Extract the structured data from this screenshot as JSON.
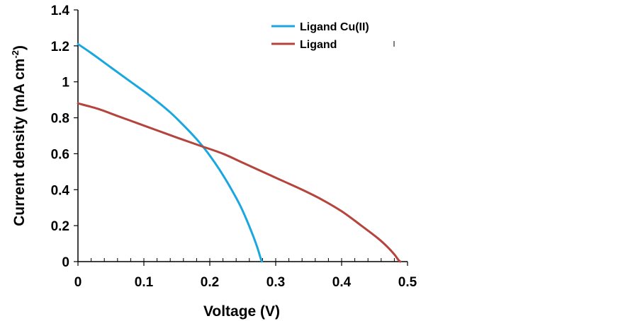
{
  "chart_data": {
    "type": "line",
    "title": "",
    "xlabel": "Voltage (V)",
    "ylabel": {
      "main": "Current density (mA cm",
      "sup": "-2",
      "close": ")"
    },
    "xlim": [
      0,
      0.5
    ],
    "ylim": [
      0,
      1.4
    ],
    "xticks": [
      0,
      0.1,
      0.2,
      0.3,
      0.4,
      0.5
    ],
    "xtick_labels": [
      "0",
      "0.1",
      "0.2",
      "0.3",
      "0.4",
      "0.5"
    ],
    "yticks": [
      0,
      0.2,
      0.4,
      0.6,
      0.8,
      1.0,
      1.2,
      1.4
    ],
    "ytick_labels": [
      "0",
      "0.2",
      "0.4",
      "0.6",
      "0.8",
      "1",
      "1.2",
      "1.4"
    ],
    "minor_x_step": 0.02,
    "grid": false,
    "legend_position": "top-right",
    "series": [
      {
        "name": "Ligand Cu(II)",
        "color": "#1AA7E0",
        "x": [
          0,
          0.02,
          0.05,
          0.08,
          0.11,
          0.14,
          0.165,
          0.185,
          0.2,
          0.215,
          0.23,
          0.245,
          0.255,
          0.265,
          0.272,
          0.277,
          0.279
        ],
        "y": [
          1.21,
          1.16,
          1.08,
          1.0,
          0.92,
          0.83,
          0.74,
          0.66,
          0.59,
          0.51,
          0.42,
          0.32,
          0.24,
          0.15,
          0.08,
          0.02,
          0.0
        ]
      },
      {
        "name": "Ligand",
        "color": "#B5443D",
        "x": [
          0,
          0.03,
          0.06,
          0.09,
          0.12,
          0.15,
          0.185,
          0.22,
          0.25,
          0.28,
          0.31,
          0.34,
          0.37,
          0.4,
          0.43,
          0.455,
          0.47,
          0.48,
          0.486,
          0.489
        ],
        "y": [
          0.88,
          0.85,
          0.81,
          0.77,
          0.73,
          0.69,
          0.645,
          0.6,
          0.55,
          0.5,
          0.45,
          0.4,
          0.345,
          0.28,
          0.2,
          0.13,
          0.08,
          0.04,
          0.01,
          0.0
        ]
      }
    ]
  }
}
